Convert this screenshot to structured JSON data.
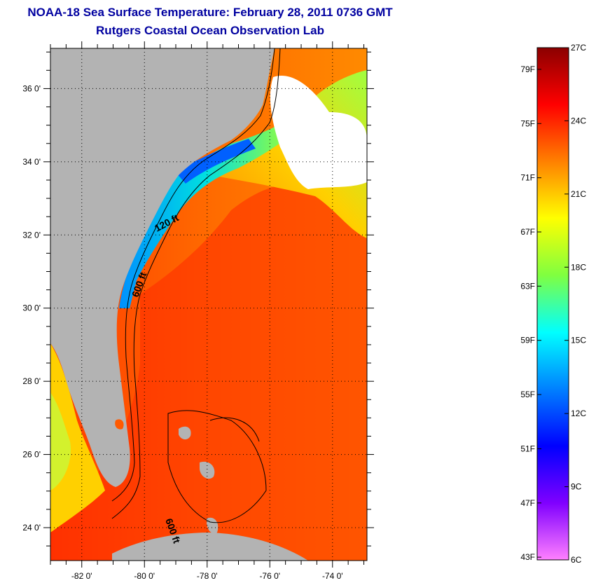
{
  "header": {
    "title": "NOAA-18 Sea Surface Temperature:  February 28, 2011 0736 GMT",
    "subtitle": "Rutgers Coastal Ocean Observation Lab"
  },
  "map": {
    "lat_ticks": [
      "36 0'",
      "34 0'",
      "32 0'",
      "30 0'",
      "28 0'",
      "26 0'",
      "24 0'"
    ],
    "lon_ticks": [
      "-82 0'",
      "-80 0'",
      "-78 0'",
      "-76 0'",
      "-74 0'"
    ],
    "lat_values": [
      36,
      34,
      32,
      30,
      28,
      26,
      24
    ],
    "lon_values": [
      -82,
      -80,
      -78,
      -76,
      -74
    ],
    "lat_range": [
      23.1,
      37.1
    ],
    "lon_range": [
      -83.0,
      -72.9
    ],
    "contour_labels": [
      "120 ft",
      "600 ft",
      "600 ft"
    ],
    "land_color": "#b3b3b3",
    "contour_color": "#000000"
  },
  "colorbar": {
    "fahrenheit_labels": [
      "79F",
      "75F",
      "71F",
      "67F",
      "63F",
      "59F",
      "55F",
      "51F",
      "47F",
      "43F"
    ],
    "celsius_labels": [
      "27C",
      "24C",
      "21C",
      "18C",
      "15C",
      "12C",
      "9C",
      "6C"
    ],
    "range_c": [
      6,
      27
    ],
    "gradient": [
      "#8b0000",
      "#ff0000",
      "#ff8000",
      "#ffff00",
      "#80ff40",
      "#00ffff",
      "#0080ff",
      "#0000ff",
      "#8000ff",
      "#ff80ff"
    ]
  }
}
